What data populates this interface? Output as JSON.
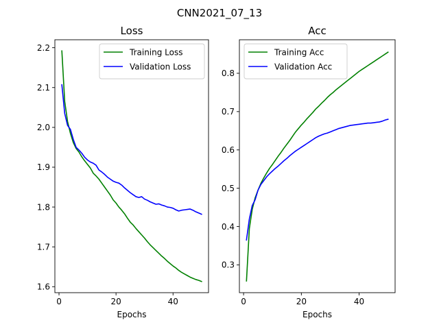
{
  "figure": {
    "suptitle": "CNN2021_07_13"
  },
  "chart_data": [
    {
      "type": "line",
      "title": "Loss",
      "xlabel": "Epochs",
      "ylabel": "",
      "xlim": [
        -1.45,
        52.45
      ],
      "ylim": [
        1.585,
        2.22
      ],
      "xticks": [
        0,
        20,
        40
      ],
      "yticks": [
        1.6,
        1.7,
        1.8,
        1.9,
        2.0,
        2.1,
        2.2
      ],
      "ytick_labels": [
        "1.6",
        "1.7",
        "1.8",
        "1.9",
        "2.0",
        "2.1",
        "2.2"
      ],
      "grid": false,
      "legend": "upper right",
      "x": [
        1,
        2,
        3,
        4,
        5,
        6,
        7,
        8,
        9,
        10,
        11,
        12,
        13,
        14,
        15,
        16,
        17,
        18,
        19,
        20,
        21,
        22,
        23,
        24,
        25,
        26,
        27,
        28,
        29,
        30,
        31,
        32,
        33,
        34,
        35,
        36,
        37,
        38,
        39,
        40,
        41,
        42,
        43,
        44,
        45,
        46,
        47,
        48,
        49,
        50
      ],
      "series": [
        {
          "name": "Training Loss",
          "color": "#008000",
          "values": [
            2.192,
            2.065,
            2.015,
            1.985,
            1.962,
            1.947,
            1.938,
            1.926,
            1.916,
            1.907,
            1.898,
            1.885,
            1.878,
            1.87,
            1.86,
            1.85,
            1.84,
            1.83,
            1.818,
            1.81,
            1.8,
            1.792,
            1.783,
            1.772,
            1.762,
            1.755,
            1.746,
            1.738,
            1.73,
            1.722,
            1.713,
            1.705,
            1.698,
            1.691,
            1.684,
            1.677,
            1.671,
            1.664,
            1.658,
            1.652,
            1.647,
            1.641,
            1.636,
            1.632,
            1.628,
            1.624,
            1.621,
            1.618,
            1.616,
            1.613
          ]
        },
        {
          "name": "Validation Loss",
          "color": "#0000ff",
          "values": [
            2.107,
            2.035,
            2.005,
            1.995,
            1.97,
            1.95,
            1.943,
            1.935,
            1.925,
            1.918,
            1.913,
            1.91,
            1.905,
            1.893,
            1.888,
            1.882,
            1.875,
            1.87,
            1.865,
            1.862,
            1.86,
            1.855,
            1.848,
            1.842,
            1.836,
            1.831,
            1.826,
            1.824,
            1.826,
            1.82,
            1.817,
            1.813,
            1.81,
            1.807,
            1.808,
            1.805,
            1.803,
            1.8,
            1.799,
            1.797,
            1.793,
            1.79,
            1.792,
            1.793,
            1.794,
            1.795,
            1.792,
            1.788,
            1.785,
            1.782
          ]
        }
      ]
    },
    {
      "type": "line",
      "title": "Acc",
      "xlabel": "Epochs",
      "ylabel": "",
      "xlim": [
        -1.45,
        52.45
      ],
      "ylim": [
        0.2275,
        0.8875
      ],
      "xticks": [
        0,
        20,
        40
      ],
      "yticks": [
        0.3,
        0.4,
        0.5,
        0.6,
        0.7,
        0.8
      ],
      "ytick_labels": [
        "0.3",
        "0.4",
        "0.5",
        "0.6",
        "0.7",
        "0.8"
      ],
      "grid": false,
      "legend": "upper left",
      "x": [
        1,
        2,
        3,
        4,
        5,
        6,
        7,
        8,
        9,
        10,
        11,
        12,
        13,
        14,
        15,
        16,
        17,
        18,
        19,
        20,
        21,
        22,
        23,
        24,
        25,
        26,
        27,
        28,
        29,
        30,
        31,
        32,
        33,
        34,
        35,
        36,
        37,
        38,
        39,
        40,
        41,
        42,
        43,
        44,
        45,
        46,
        47,
        48,
        49,
        50
      ],
      "series": [
        {
          "name": "Training Acc",
          "color": "#008000",
          "values": [
            0.258,
            0.395,
            0.445,
            0.475,
            0.495,
            0.513,
            0.527,
            0.54,
            0.552,
            0.562,
            0.573,
            0.584,
            0.594,
            0.605,
            0.615,
            0.625,
            0.636,
            0.647,
            0.656,
            0.665,
            0.673,
            0.682,
            0.69,
            0.698,
            0.707,
            0.714,
            0.722,
            0.729,
            0.737,
            0.744,
            0.75,
            0.757,
            0.763,
            0.769,
            0.775,
            0.781,
            0.787,
            0.793,
            0.799,
            0.805,
            0.81,
            0.815,
            0.82,
            0.825,
            0.83,
            0.835,
            0.84,
            0.845,
            0.85,
            0.855
          ]
        },
        {
          "name": "Validation Acc",
          "color": "#0000ff",
          "values": [
            0.365,
            0.42,
            0.455,
            0.47,
            0.495,
            0.51,
            0.52,
            0.53,
            0.538,
            0.545,
            0.552,
            0.558,
            0.565,
            0.572,
            0.578,
            0.585,
            0.591,
            0.597,
            0.602,
            0.607,
            0.612,
            0.617,
            0.622,
            0.627,
            0.632,
            0.636,
            0.639,
            0.642,
            0.644,
            0.647,
            0.65,
            0.653,
            0.656,
            0.658,
            0.66,
            0.662,
            0.664,
            0.665,
            0.666,
            0.667,
            0.668,
            0.669,
            0.67,
            0.67,
            0.671,
            0.672,
            0.673,
            0.675,
            0.678,
            0.68
          ]
        }
      ]
    }
  ]
}
